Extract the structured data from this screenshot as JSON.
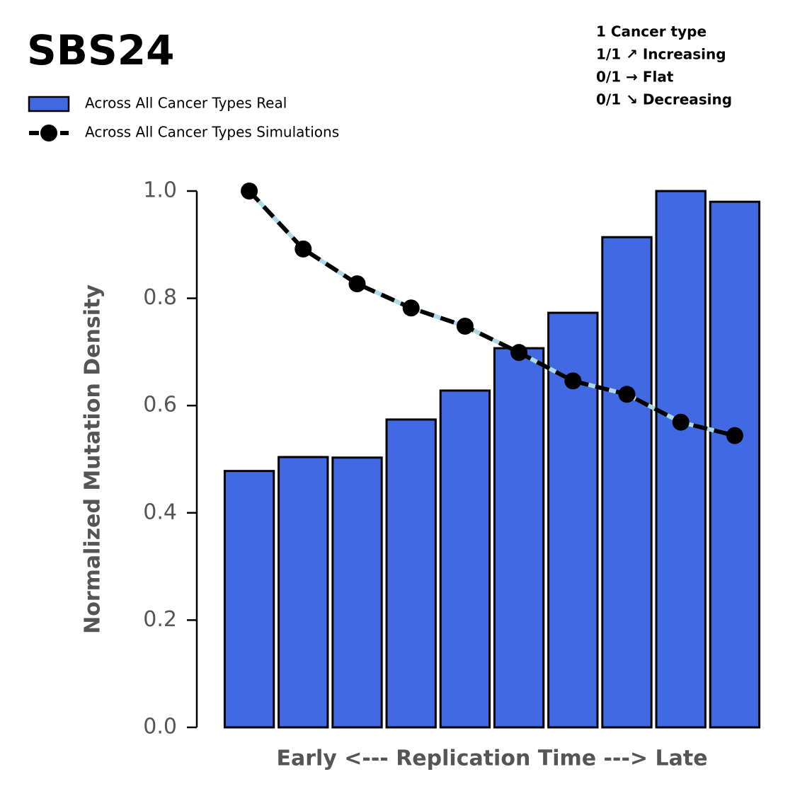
{
  "chart_data": {
    "type": "bar",
    "title": "SBS24",
    "x_label": "Early <--- Replication Time ---> Late",
    "y_label": "Normalized Mutation Density",
    "annotations": [
      "1 Cancer type",
      "1/1 ↗ Increasing",
      "0/1 → Flat",
      "0/1 ↘ Decreasing"
    ],
    "categories": [
      null,
      null,
      null,
      null,
      null,
      null,
      null,
      null,
      null,
      null
    ],
    "series": [
      {
        "name": "Across All Cancer Types Real",
        "type": "bar",
        "color": "#4169e1",
        "values": [
          0.478,
          0.504,
          0.503,
          0.574,
          0.628,
          0.707,
          0.773,
          0.914,
          1.0,
          0.98
        ]
      },
      {
        "name": "Across All Cancer Types Simulations",
        "type": "line",
        "color": "#000000",
        "band_color": "#add8e6",
        "values": [
          1.0,
          0.892,
          0.827,
          0.782,
          0.748,
          0.699,
          0.646,
          0.621,
          0.569,
          0.544
        ]
      }
    ],
    "ylim": [
      0,
      1.0
    ],
    "yticks": [
      {
        "value": 0,
        "label": "0.0"
      },
      0.2,
      0.4,
      0.6,
      0.8,
      {
        "value": 1.0,
        "label": "1.0"
      }
    ]
  }
}
